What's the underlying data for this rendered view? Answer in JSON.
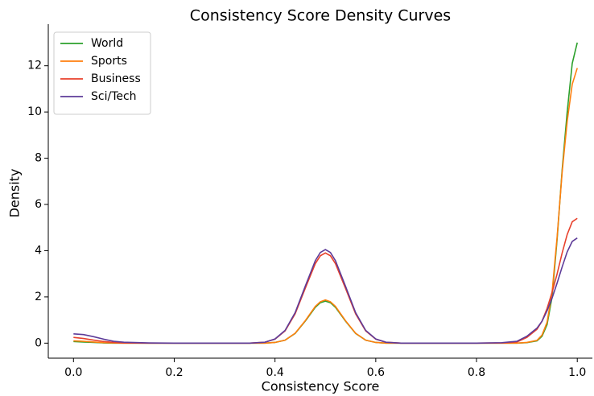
{
  "chart_data": {
    "type": "line",
    "title": "Consistency Score Density Curves",
    "x_label": "Consistency Score",
    "y_label": "Density",
    "x": [
      0,
      0.02,
      0.04,
      0.06,
      0.08,
      0.1,
      0.15,
      0.2,
      0.3,
      0.35,
      0.38,
      0.4,
      0.42,
      0.44,
      0.46,
      0.48,
      0.49,
      0.5,
      0.51,
      0.52,
      0.54,
      0.56,
      0.58,
      0.6,
      0.62,
      0.65,
      0.7,
      0.8,
      0.85,
      0.88,
      0.9,
      0.92,
      0.93,
      0.94,
      0.95,
      0.96,
      0.97,
      0.98,
      0.99,
      1.0
    ],
    "series": [
      {
        "name": "World",
        "color": "#2ca02c",
        "values": [
          0.07,
          0.05,
          0.03,
          0.01,
          0,
          0,
          0,
          0,
          0,
          0,
          0,
          0.03,
          0.13,
          0.42,
          0.95,
          1.55,
          1.75,
          1.82,
          1.75,
          1.55,
          0.95,
          0.42,
          0.13,
          0.03,
          0,
          0,
          0,
          0,
          0,
          0,
          0.02,
          0.1,
          0.3,
          0.8,
          2.0,
          4.5,
          7.5,
          10.0,
          12.1,
          13.0
        ]
      },
      {
        "name": "Sports",
        "color": "#ff7f0e",
        "values": [
          0.1,
          0.08,
          0.05,
          0.02,
          0.01,
          0,
          0,
          0,
          0,
          0,
          0,
          0.03,
          0.13,
          0.43,
          0.97,
          1.59,
          1.79,
          1.87,
          1.79,
          1.59,
          0.97,
          0.43,
          0.13,
          0.03,
          0,
          0,
          0,
          0,
          0,
          0,
          0.03,
          0.12,
          0.35,
          0.9,
          2.2,
          4.6,
          7.4,
          9.6,
          11.2,
          11.9
        ]
      },
      {
        "name": "Business",
        "color": "#e8412c",
        "values": [
          0.25,
          0.2,
          0.13,
          0.07,
          0.03,
          0.01,
          0,
          0,
          0,
          0,
          0.04,
          0.17,
          0.53,
          1.27,
          2.37,
          3.44,
          3.78,
          3.9,
          3.78,
          3.44,
          2.37,
          1.27,
          0.53,
          0.17,
          0.04,
          0,
          0,
          0,
          0.01,
          0.05,
          0.25,
          0.6,
          0.95,
          1.5,
          2.2,
          3.0,
          3.9,
          4.7,
          5.25,
          5.4
        ]
      },
      {
        "name": "Sci/Tech",
        "color": "#5e3c99",
        "values": [
          0.4,
          0.37,
          0.28,
          0.17,
          0.08,
          0.04,
          0.01,
          0,
          0,
          0,
          0.04,
          0.18,
          0.55,
          1.32,
          2.46,
          3.57,
          3.92,
          4.05,
          3.92,
          3.57,
          2.46,
          1.32,
          0.55,
          0.18,
          0.04,
          0,
          0,
          0,
          0.02,
          0.08,
          0.3,
          0.65,
          0.95,
          1.4,
          1.95,
          2.6,
          3.3,
          3.95,
          4.4,
          4.55
        ]
      }
    ],
    "xlim": [
      -0.05,
      1.03
    ],
    "ylim": [
      -0.65,
      13.8
    ],
    "xticks": [
      {
        "value": 0,
        "label": "0.0"
      },
      0.2,
      0.4,
      0.6,
      0.8,
      {
        "value": 1,
        "label": "1.0"
      }
    ],
    "yticks": [
      0,
      2,
      4,
      6,
      8,
      10,
      12
    ],
    "legend": "upper left"
  }
}
